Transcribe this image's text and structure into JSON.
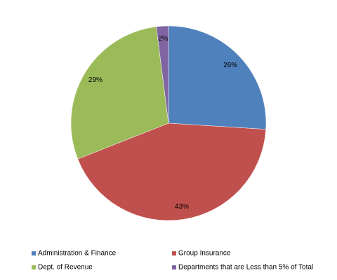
{
  "chart_data": {
    "type": "pie",
    "categories": [
      "Administration & Finance",
      "Group Insurance",
      "Dept. of Revenue",
      "Departments that are Less than 5% of Total"
    ],
    "values": [
      26,
      43,
      29,
      2
    ],
    "value_labels": [
      "26%",
      "43%",
      "29%",
      "2%"
    ],
    "colors": [
      "#4f81bd",
      "#c0504d",
      "#9bbb59",
      "#8064a2"
    ],
    "legend": "bottom"
  }
}
